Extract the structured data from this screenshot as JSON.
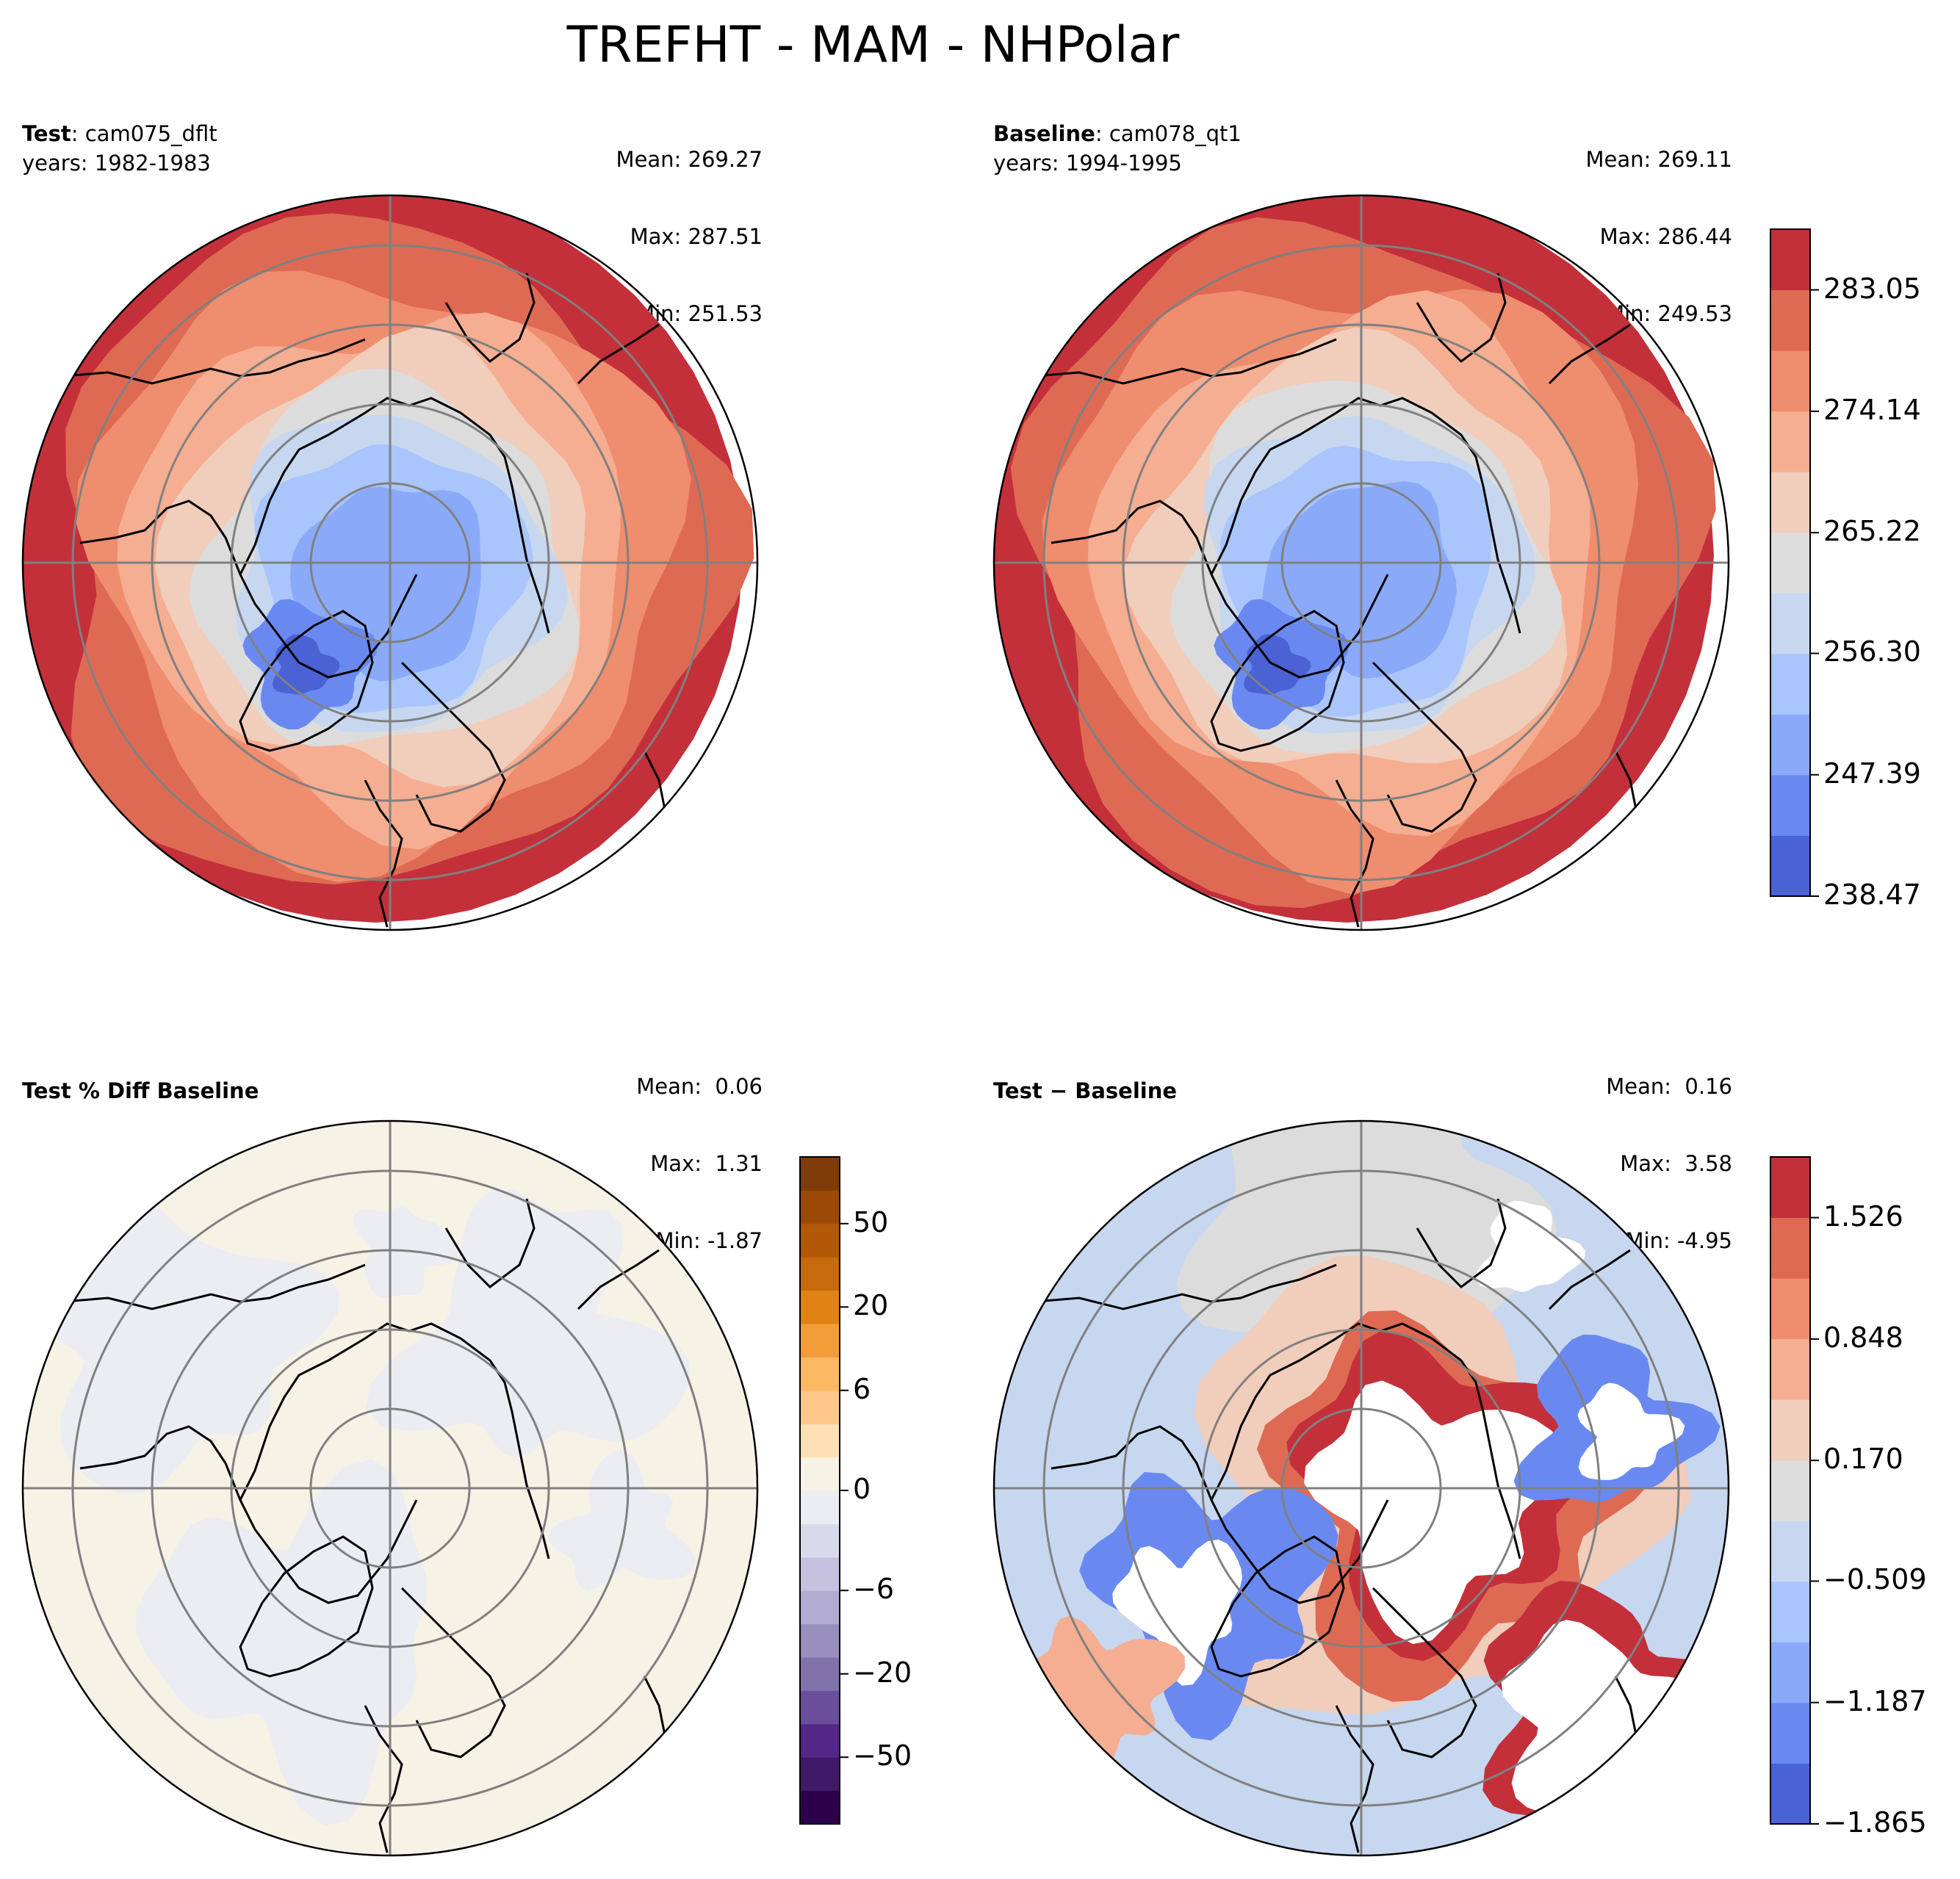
{
  "figure_title": "TREFHT - MAM - NHPolar",
  "panels": {
    "test": {
      "label_bold": "Test",
      "label_sep": ":",
      "case": "cam075_dflt",
      "years": "years: 1982-1983",
      "mean": "Mean: 269.27",
      "max": "Max: 287.51",
      "min": "Min: 251.53"
    },
    "baseline": {
      "label_bold": "Baseline",
      "label_sep": ":",
      "case": "cam078_qt1",
      "years": "years: 1994-1995",
      "mean": "Mean: 269.11",
      "max": "Max: 286.44",
      "min": "Min: 249.53"
    },
    "pct_diff": {
      "label_bold": "Test % Diff Baseline",
      "mean": "Mean:  0.06",
      "max": "Max:  1.31",
      "min": "Min: -1.87"
    },
    "diff": {
      "label_bold": "Test − Baseline",
      "mean": "Mean:  0.16",
      "max": "Max:  3.58",
      "min": "Min: -4.95"
    }
  },
  "colorbars": {
    "absolute": {
      "cmap": "coolwarm",
      "ticks": [
        "283.05",
        "274.14",
        "265.22",
        "256.30",
        "247.39",
        "238.47"
      ],
      "colors": [
        "#4a62d4",
        "#6a89f0",
        "#8aaaf9",
        "#a9c5fc",
        "#c7d7f0",
        "#dddcdc",
        "#f1cdbb",
        "#f5ae92",
        "#ef8d6f",
        "#de6a53",
        "#c3303a"
      ]
    },
    "pct_diff": {
      "cmap": "PuOr_r",
      "ticks": [
        "50",
        "20",
        "6",
        "0",
        "−6",
        "−20",
        "−50"
      ],
      "colors": [
        "#2d004b",
        "#3f1a66",
        "#542788",
        "#6a4e9b",
        "#8073ac",
        "#998fbf",
        "#b2abd2",
        "#c7c1e0",
        "#d8daeb",
        "#ecedf3",
        "#f7f2e6",
        "#fde0b6",
        "#fdc88a",
        "#fdb863",
        "#f39c3a",
        "#e08214",
        "#c66a0b",
        "#b35806",
        "#9a4a06",
        "#7f3b08"
      ]
    },
    "diff": {
      "cmap": "coolwarm",
      "ticks": [
        "1.526",
        "0.848",
        "0.170",
        "−0.509",
        "−1.187",
        "−1.865"
      ],
      "colors": [
        "#4a62d4",
        "#6a89f0",
        "#8aaaf9",
        "#a9c5fc",
        "#c7d7f0",
        "#dddcdc",
        "#f1cdbb",
        "#f5ae92",
        "#ef8d6f",
        "#de6a53",
        "#c3303a"
      ]
    }
  }
}
